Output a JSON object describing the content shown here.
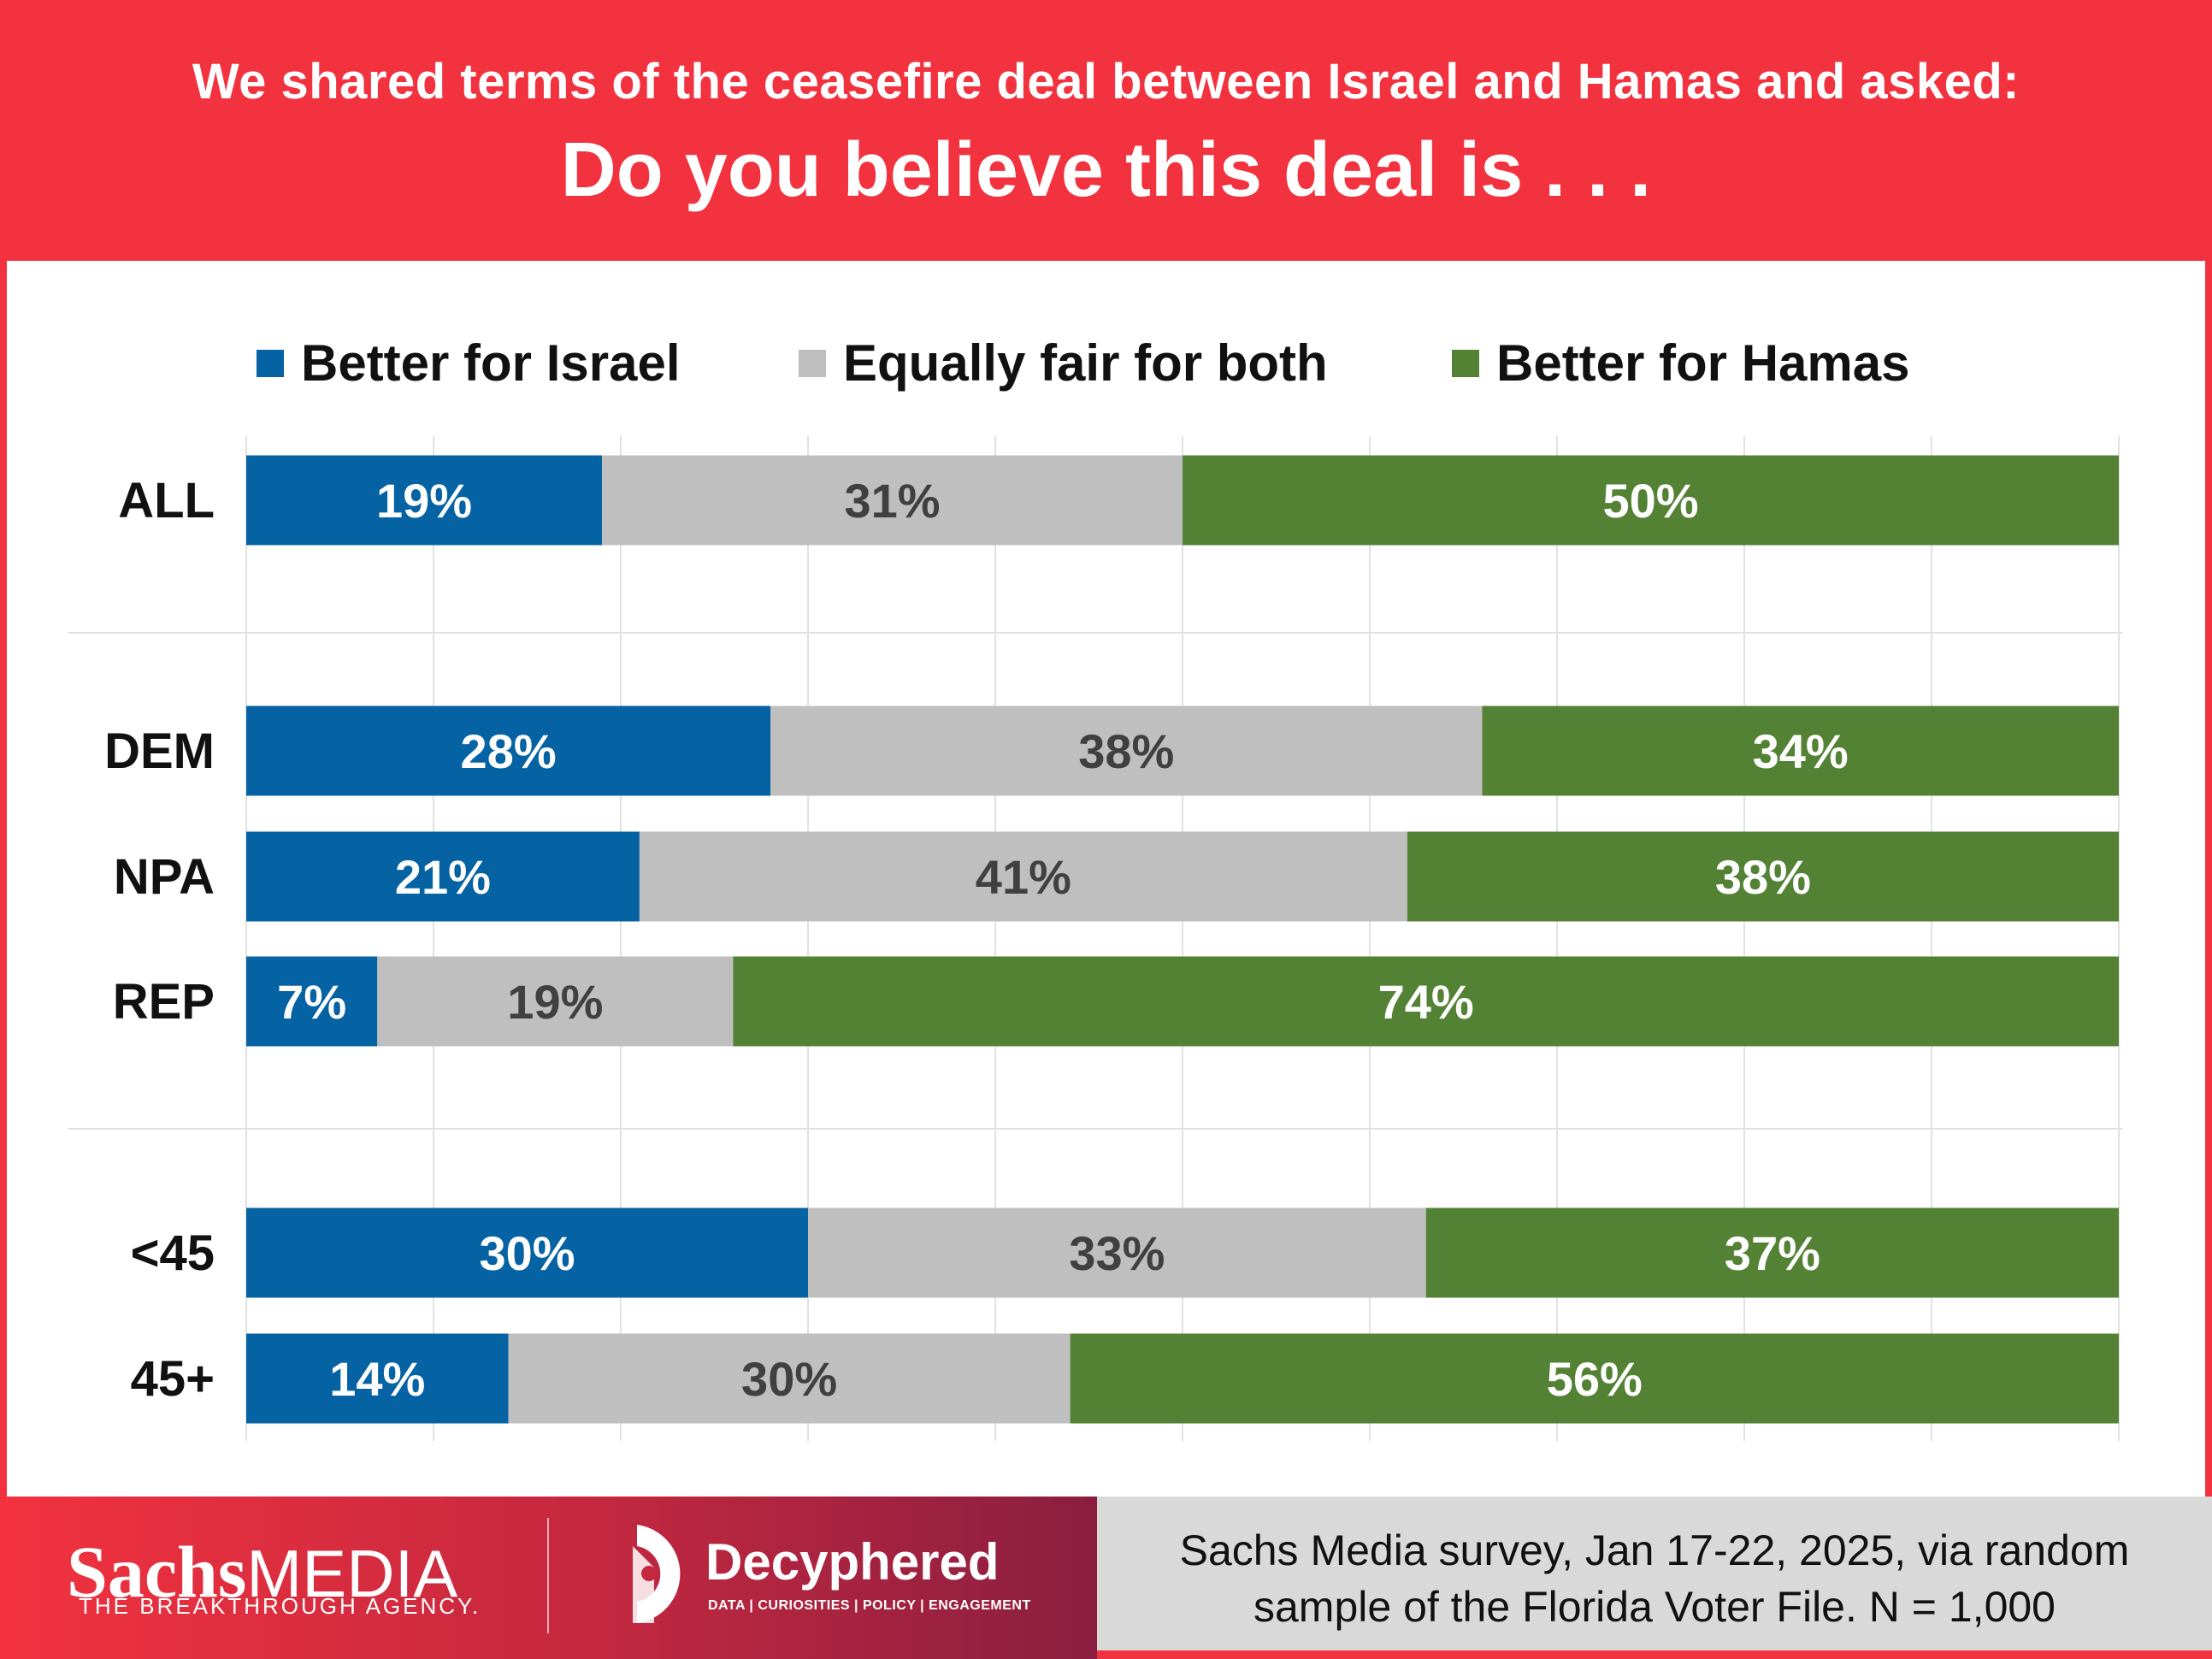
{
  "header": {
    "subtitle": "We shared terms of the ceasefire deal between Israel and Hamas and asked:",
    "title": "Do you believe this deal is . . ."
  },
  "chart_data": {
    "type": "bar",
    "orientation": "horizontal",
    "stacked": true,
    "xlim": [
      0,
      100
    ],
    "legend": "top",
    "categories": [
      "ALL",
      "DEM",
      "NPA",
      "REP",
      "<45",
      "45+"
    ],
    "groups": [
      [
        "ALL"
      ],
      [
        "DEM",
        "NPA",
        "REP"
      ],
      [
        "<45",
        "45+"
      ]
    ],
    "series": [
      {
        "name": "Better for Israel",
        "color": "#0563a4",
        "label_color": "#ffffff",
        "values": [
          19,
          28,
          21,
          7,
          30,
          14
        ]
      },
      {
        "name": "Equally fair for both",
        "color": "#bfbfbf",
        "label_color": "#404040",
        "values": [
          31,
          38,
          41,
          19,
          33,
          30
        ]
      },
      {
        "name": "Better for Hamas",
        "color": "#548235",
        "label_color": "#ffffff",
        "values": [
          50,
          34,
          38,
          74,
          37,
          56
        ]
      }
    ],
    "value_suffix": "%"
  },
  "footer": {
    "source_line1": "Sachs Media survey, Jan 17-22, 2025, via random",
    "source_line2": "sample of the Florida Voter File. N = 1,000",
    "logo_sachs": "Sachs",
    "logo_media": "MEDIA",
    "logo_tagline": "THE BREAKTHROUGH AGENCY.",
    "deco_name": "Decyphered",
    "deco_tagline": "DATA | CURIOSITIES | POLICY | ENGAGEMENT"
  },
  "colors": {
    "header_bg": "#f2323f",
    "footer_right_bg": "#d9d9d9"
  }
}
